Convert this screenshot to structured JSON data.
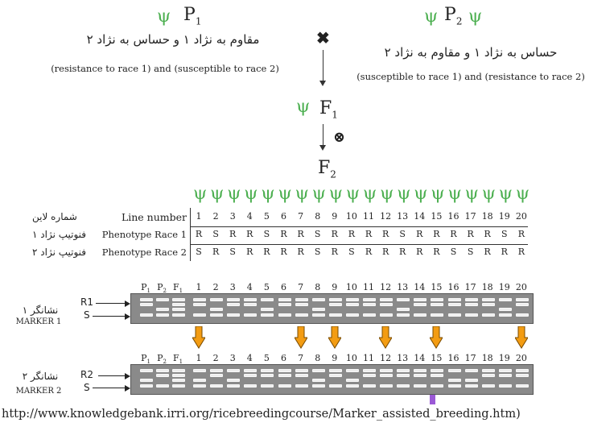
{
  "p1": {
    "label": "P",
    "sub": "1",
    "farsi": "مقاوم به نژاد ۱ و حساس به نژاد ۲",
    "english": "(resistance to race 1) and  (susceptible to race 2)"
  },
  "p2": {
    "label": "P",
    "sub": "2",
    "farsi": "حساس به نژاد ۱ و مقاوم به نژاد ۲",
    "english": "(susceptible  to race 1) and  (resistance to race 2)"
  },
  "cross_symbol": "✖",
  "self_symbol": "⊗",
  "f1": {
    "label": "F",
    "sub": "1"
  },
  "f2": {
    "label": "F",
    "sub": "2"
  },
  "table": {
    "row_labels_fa": [
      "شماره لاین",
      "فنوتیپ نژاد ۱",
      "فنوتیپ نژاد ۲"
    ],
    "row_labels_en": [
      "Line number",
      "Phenotype Race 1",
      "Phenotype Race 2"
    ],
    "line_numbers": [
      "1",
      "2",
      "3",
      "4",
      "5",
      "6",
      "7",
      "8",
      "9",
      "10",
      "11",
      "12",
      "13",
      "14",
      "15",
      "16",
      "17",
      "18",
      "19",
      "20"
    ],
    "race1": [
      "R",
      "S",
      "R",
      "R",
      "S",
      "R",
      "R",
      "S",
      "R",
      "R",
      "R",
      "R",
      "S",
      "R",
      "R",
      "R",
      "R",
      "R",
      "S",
      "R"
    ],
    "race2": [
      "S",
      "R",
      "S",
      "R",
      "R",
      "R",
      "R",
      "S",
      "R",
      "S",
      "R",
      "R",
      "R",
      "R",
      "R",
      "S",
      "S",
      "R",
      "R",
      "R"
    ]
  },
  "marker1": {
    "label_fa": "نشانگر ۱",
    "label_en": "MARKER 1",
    "band_labels": [
      "R1",
      "S"
    ],
    "lane_headers": [
      "P1",
      "P2",
      "F1",
      "1",
      "2",
      "3",
      "4",
      "5",
      "6",
      "7",
      "8",
      "9",
      "10",
      "11",
      "12",
      "13",
      "14",
      "15",
      "16",
      "17",
      "18",
      "19",
      "20"
    ]
  },
  "marker2": {
    "label_fa": "نشانگر ۲",
    "label_en": "MARKER 2",
    "band_labels": [
      "R2",
      "S"
    ],
    "lane_headers": [
      "P1",
      "P2",
      "F1",
      "1",
      "2",
      "3",
      "4",
      "5",
      "6",
      "7",
      "8",
      "9",
      "10",
      "11",
      "12",
      "13",
      "14",
      "15",
      "16",
      "17",
      "18",
      "19",
      "20"
    ]
  },
  "selected_lines": [
    "1",
    "7",
    "9",
    "12",
    "15",
    "20"
  ],
  "colors": {
    "plant": "#4caf50",
    "gel": "#8a8a8a",
    "arrow_orange": "#f39c12",
    "marker_purple": "#9b59d6"
  },
  "source_url": "http://www.knowledgebank.irri.org/ricebreedingcourse/Marker_assisted_breeding.htm)"
}
